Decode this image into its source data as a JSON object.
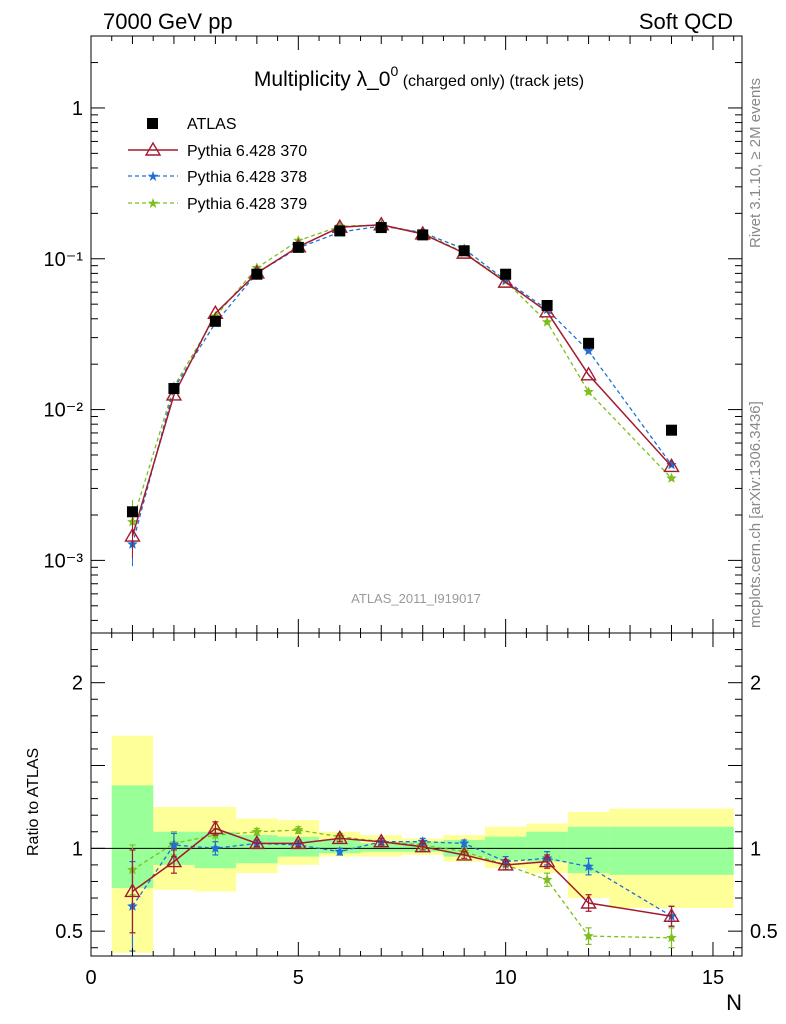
{
  "header": {
    "left": "7000 GeV pp",
    "right": "Soft QCD"
  },
  "side_labels": {
    "rivet": "Rivet 3.1.10, ≥ 2M events",
    "mcplots": "mcplots.cern.ch [arXiv:1306.3436]"
  },
  "reference": "ATLAS_2011_I919017",
  "colors": {
    "atlas": "#000000",
    "p370": "#a11a2f",
    "p378": "#1f6fd6",
    "p379": "#7cbf1e",
    "band_outer": "#ffff99",
    "band_inner": "#99ff99"
  },
  "chart_data": [
    {
      "type": "line",
      "title_main": "Multiplicity λ_0",
      "title_sup": "0",
      "title_suffix": " (charged only) (track jets)",
      "xlabel": "N",
      "ylabel": "",
      "yscale": "log",
      "xlim": [
        0,
        15.7
      ],
      "ylim": [
        0.00033,
        3
      ],
      "y_ticks": [
        {
          "value": 1,
          "label": "1"
        },
        {
          "value": 0.1,
          "label": "10⁻¹"
        },
        {
          "value": 0.01,
          "label": "10⁻²"
        },
        {
          "value": 0.001,
          "label": "10⁻³"
        }
      ],
      "legend_position": "top-left",
      "series": [
        {
          "name": "ATLAS",
          "marker": "square",
          "x": [
            1,
            2,
            3,
            4,
            5,
            6,
            7,
            8,
            9,
            10,
            11,
            12,
            14
          ],
          "y": [
            0.0021,
            0.0138,
            0.0385,
            0.079,
            0.119,
            0.153,
            0.161,
            0.144,
            0.113,
            0.079,
            0.049,
            0.0275,
            0.0073
          ]
        },
        {
          "name": "Pythia 6.428 370",
          "marker": "triangle",
          "line": "solid",
          "x": [
            1,
            2,
            3,
            4,
            5,
            6,
            7,
            8,
            9,
            10,
            11,
            12,
            14
          ],
          "y": [
            0.00145,
            0.0125,
            0.0435,
            0.0805,
            0.12,
            0.162,
            0.168,
            0.146,
            0.109,
            0.07,
            0.0445,
            0.017,
            0.0042
          ]
        },
        {
          "name": "Pythia 6.428 378",
          "marker": "star",
          "line": "dashed",
          "x": [
            1,
            2,
            3,
            4,
            5,
            6,
            7,
            8,
            9,
            10,
            11,
            12,
            14
          ],
          "y": [
            0.00128,
            0.0138,
            0.0375,
            0.0805,
            0.118,
            0.15,
            0.165,
            0.149,
            0.116,
            0.072,
            0.046,
            0.0245,
            0.0043
          ]
        },
        {
          "name": "Pythia 6.428 379",
          "marker": "star",
          "line": "dashed",
          "x": [
            1,
            2,
            3,
            4,
            5,
            6,
            7,
            8,
            9,
            10,
            11,
            12,
            14
          ],
          "y": [
            0.0018,
            0.0142,
            0.0415,
            0.087,
            0.132,
            0.164,
            0.168,
            0.148,
            0.11,
            0.071,
            0.038,
            0.0131,
            0.0035
          ]
        }
      ]
    },
    {
      "type": "line",
      "xlabel": "N",
      "ylabel": "Ratio to ATLAS",
      "xlim": [
        0,
        15.7
      ],
      "ylim": [
        0.35,
        2.3
      ],
      "x_ticks": [
        {
          "value": 0,
          "label": "0"
        },
        {
          "value": 5,
          "label": "5"
        },
        {
          "value": 10,
          "label": "10"
        },
        {
          "value": 15,
          "label": "15"
        }
      ],
      "y_ticks": [
        {
          "value": 2,
          "label": "2"
        },
        {
          "value": 1,
          "label": "1"
        },
        {
          "value": 0.5,
          "label": "0.5"
        }
      ],
      "bands": [
        {
          "x0": 0.5,
          "x1": 1.5,
          "outer": [
            0.37,
            1.68
          ],
          "inner": [
            0.76,
            1.38
          ]
        },
        {
          "x0": 1.5,
          "x1": 2.5,
          "outer": [
            0.75,
            1.25
          ],
          "inner": [
            0.9,
            1.1
          ]
        },
        {
          "x0": 2.5,
          "x1": 3.5,
          "outer": [
            0.74,
            1.25
          ],
          "inner": [
            0.88,
            1.1
          ]
        },
        {
          "x0": 3.5,
          "x1": 4.5,
          "outer": [
            0.85,
            1.18
          ],
          "inner": [
            0.91,
            1.08
          ]
        },
        {
          "x0": 4.5,
          "x1": 5.5,
          "outer": [
            0.9,
            1.17
          ],
          "inner": [
            0.95,
            1.07
          ]
        },
        {
          "x0": 5.5,
          "x1": 6.5,
          "outer": [
            0.95,
            1.1
          ],
          "inner": [
            0.97,
            1.05
          ]
        },
        {
          "x0": 6.5,
          "x1": 7.5,
          "outer": [
            0.95,
            1.08
          ],
          "inner": [
            0.98,
            1.03
          ]
        },
        {
          "x0": 7.5,
          "x1": 8.5,
          "outer": [
            0.96,
            1.06
          ],
          "inner": [
            0.98,
            1.04
          ]
        },
        {
          "x0": 8.5,
          "x1": 9.5,
          "outer": [
            0.92,
            1.08
          ],
          "inner": [
            0.95,
            1.05
          ]
        },
        {
          "x0": 9.5,
          "x1": 10.5,
          "outer": [
            0.88,
            1.13
          ],
          "inner": [
            0.93,
            1.07
          ]
        },
        {
          "x0": 10.5,
          "x1": 11.5,
          "outer": [
            0.85,
            1.15
          ],
          "inner": [
            0.92,
            1.1
          ]
        },
        {
          "x0": 11.5,
          "x1": 12.5,
          "outer": [
            0.7,
            1.22
          ],
          "inner": [
            0.85,
            1.13
          ]
        },
        {
          "x0": 12.5,
          "x1": 15.5,
          "outer": [
            0.64,
            1.24
          ],
          "inner": [
            0.84,
            1.13
          ]
        }
      ],
      "series": [
        {
          "name": "Pythia 6.428 370",
          "x": [
            1,
            2,
            3,
            4,
            5,
            6,
            7,
            8,
            9,
            10,
            11,
            12,
            14
          ],
          "y": [
            0.74,
            0.92,
            1.12,
            1.03,
            1.03,
            1.06,
            1.04,
            1.01,
            0.96,
            0.9,
            0.92,
            0.67,
            0.59
          ],
          "err": [
            0.25,
            0.07,
            0.04,
            0.02,
            0.02,
            0.02,
            0.02,
            0.02,
            0.02,
            0.03,
            0.04,
            0.05,
            0.06
          ]
        },
        {
          "name": "Pythia 6.428 378",
          "x": [
            1,
            2,
            3,
            4,
            5,
            6,
            7,
            8,
            9,
            10,
            11,
            12,
            14
          ],
          "y": [
            0.65,
            1.02,
            1.0,
            1.03,
            1.02,
            0.98,
            1.04,
            1.04,
            1.03,
            0.92,
            0.94,
            0.89,
            0.59
          ],
          "err": [
            0.27,
            0.07,
            0.04,
            0.02,
            0.02,
            0.02,
            0.02,
            0.02,
            0.02,
            0.03,
            0.04,
            0.05,
            0.06
          ]
        },
        {
          "name": "Pythia 6.428 379",
          "x": [
            1,
            2,
            3,
            4,
            5,
            6,
            7,
            8,
            9,
            10,
            11,
            12,
            14
          ],
          "y": [
            0.87,
            1.03,
            1.08,
            1.1,
            1.11,
            1.07,
            1.04,
            1.02,
            0.98,
            0.9,
            0.81,
            0.47,
            0.46
          ],
          "err": [
            0.15,
            0.07,
            0.04,
            0.02,
            0.02,
            0.02,
            0.02,
            0.02,
            0.02,
            0.03,
            0.04,
            0.05,
            0.06
          ]
        }
      ]
    }
  ]
}
